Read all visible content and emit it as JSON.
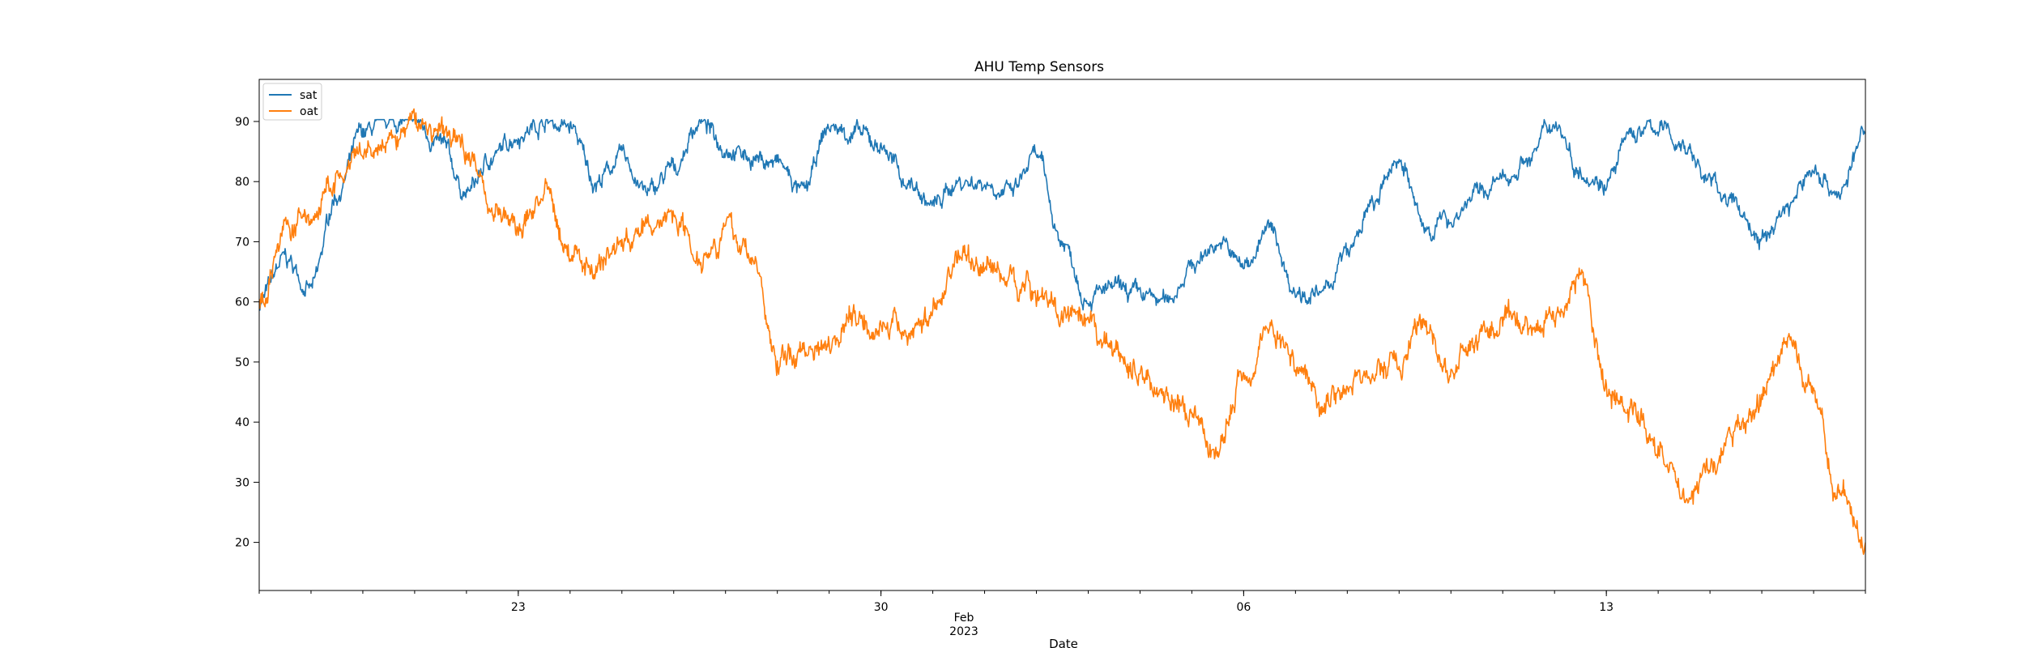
{
  "chart_data": {
    "type": "line",
    "title": "AHU Temp Sensors",
    "xlabel": "Date",
    "ylabel": "",
    "ylim": [
      12,
      97
    ],
    "xlim": [
      "2023-01-18",
      "2023-02-18"
    ],
    "y_ticks": [
      20,
      30,
      40,
      50,
      60,
      70,
      80,
      90
    ],
    "x_ticks": [
      {
        "date": "2023-01-23",
        "label": "23"
      },
      {
        "date": "2023-01-30",
        "label": "30"
      },
      {
        "date": "2023-02-06",
        "label": "06"
      },
      {
        "date": "2023-02-13",
        "label": "13"
      }
    ],
    "x_month_label": "Feb",
    "x_year_label": "2023",
    "legend_position": "upper-left",
    "grid": false,
    "series": [
      {
        "name": "sat",
        "color": "#1f77b4",
        "x": [
          "2023-01-18",
          "2023-01-18T12:00",
          "2023-01-19",
          "2023-01-19T12:00",
          "2023-01-20",
          "2023-01-20T12:00",
          "2023-01-21",
          "2023-01-21T12:00",
          "2023-01-22",
          "2023-01-22T12:00",
          "2023-01-23",
          "2023-01-23T12:00",
          "2023-01-24",
          "2023-01-24T12:00",
          "2023-01-25",
          "2023-01-25T12:00",
          "2023-01-26",
          "2023-01-26T12:00",
          "2023-01-27",
          "2023-01-27T12:00",
          "2023-01-28",
          "2023-01-28T12:00",
          "2023-01-29",
          "2023-01-29T12:00",
          "2023-01-30",
          "2023-01-30T12:00",
          "2023-01-31",
          "2023-01-31T12:00",
          "2023-02-01",
          "2023-02-01T12:00",
          "2023-02-02",
          "2023-02-02T12:00",
          "2023-02-03",
          "2023-02-03T12:00",
          "2023-02-04",
          "2023-02-04T12:00",
          "2023-02-05",
          "2023-02-05T12:00",
          "2023-02-06",
          "2023-02-06T12:00",
          "2023-02-07",
          "2023-02-07T12:00",
          "2023-02-08",
          "2023-02-08T12:00",
          "2023-02-09",
          "2023-02-09T12:00",
          "2023-02-10",
          "2023-02-10T12:00",
          "2023-02-11",
          "2023-02-11T12:00",
          "2023-02-12",
          "2023-02-12T12:00",
          "2023-02-13",
          "2023-02-13T12:00",
          "2023-02-14",
          "2023-02-14T12:00",
          "2023-02-15",
          "2023-02-15T12:00",
          "2023-02-16",
          "2023-02-16T12:00",
          "2023-02-17",
          "2023-02-17T12:00",
          "2023-02-18"
        ],
        "y": [
          60,
          67,
          62,
          78,
          88,
          90,
          90,
          86,
          78,
          84,
          88,
          90,
          89,
          80,
          84,
          78,
          82,
          90,
          86,
          84,
          83,
          78,
          89,
          88,
          86,
          80,
          76,
          80,
          80,
          78,
          84,
          70,
          61,
          62,
          61,
          60,
          66,
          70,
          66,
          72,
          62,
          61,
          68,
          76,
          84,
          72,
          74,
          78,
          80,
          84,
          90,
          82,
          80,
          88,
          89,
          86,
          80,
          76,
          70,
          76,
          82,
          78,
          88
        ],
        "noise": 1.6
      },
      {
        "name": "oat",
        "color": "#ff7f0e",
        "x": [
          "2023-01-18",
          "2023-01-18T12:00",
          "2023-01-19",
          "2023-01-19T12:00",
          "2023-01-20",
          "2023-01-20T12:00",
          "2023-01-21",
          "2023-01-21T12:00",
          "2023-01-22",
          "2023-01-22T12:00",
          "2023-01-23",
          "2023-01-23T12:00",
          "2023-01-24",
          "2023-01-24T12:00",
          "2023-01-25",
          "2023-01-25T12:00",
          "2023-01-26",
          "2023-01-26T12:00",
          "2023-01-27",
          "2023-01-27T12:00",
          "2023-01-28",
          "2023-01-28T12:00",
          "2023-01-29",
          "2023-01-29T12:00",
          "2023-01-30",
          "2023-01-30T12:00",
          "2023-01-31",
          "2023-01-31T12:00",
          "2023-02-01",
          "2023-02-01T12:00",
          "2023-02-02",
          "2023-02-02T12:00",
          "2023-02-03",
          "2023-02-03T12:00",
          "2023-02-04",
          "2023-02-04T12:00",
          "2023-02-05",
          "2023-02-05T12:00",
          "2023-02-06",
          "2023-02-06T12:00",
          "2023-02-07",
          "2023-02-07T12:00",
          "2023-02-08",
          "2023-02-08T12:00",
          "2023-02-09",
          "2023-02-09T12:00",
          "2023-02-10",
          "2023-02-10T12:00",
          "2023-02-11",
          "2023-02-11T12:00",
          "2023-02-12",
          "2023-02-12T12:00",
          "2023-02-13",
          "2023-02-13T12:00",
          "2023-02-14",
          "2023-02-14T12:00",
          "2023-02-15",
          "2023-02-15T12:00",
          "2023-02-16",
          "2023-02-16T12:00",
          "2023-02-17",
          "2023-02-17T12:00",
          "2023-02-18"
        ],
        "y": [
          60,
          72,
          74,
          80,
          84,
          86,
          90,
          88,
          86,
          76,
          72,
          78,
          68,
          66,
          70,
          72,
          75,
          68,
          72,
          68,
          50,
          52,
          54,
          58,
          56,
          55,
          58,
          68,
          66,
          64,
          62,
          58,
          55,
          52,
          48,
          45,
          40,
          35,
          48,
          56,
          50,
          44,
          46,
          48,
          50,
          56,
          48,
          54,
          56,
          56,
          58,
          64,
          46,
          42,
          36,
          28,
          32,
          38,
          44,
          54,
          44,
          28,
          20
        ],
        "noise": 2.2
      }
    ]
  }
}
